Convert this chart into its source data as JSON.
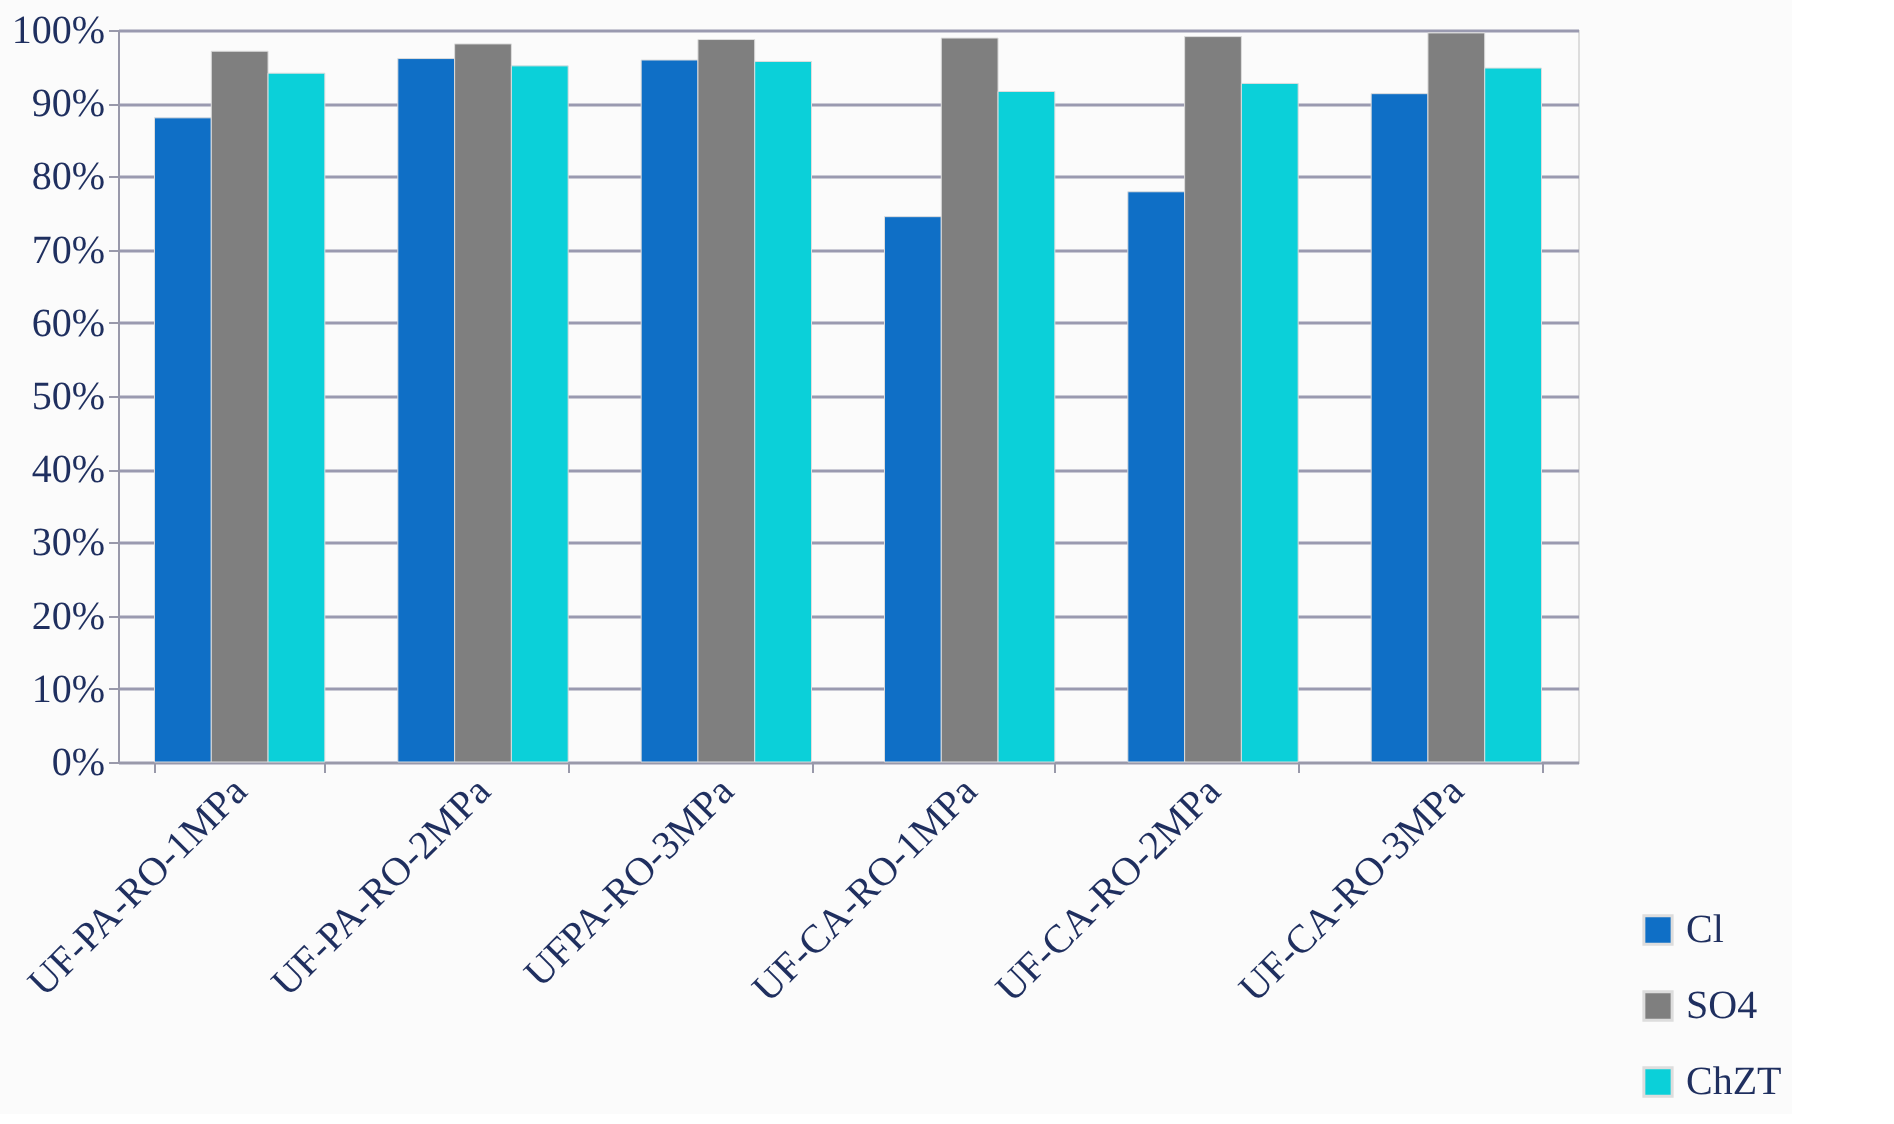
{
  "chart_data": {
    "type": "bar",
    "categories": [
      "UF-PA-RO-1MPa",
      "UF-PA-RO-2MPa",
      "UFPA-RO-3MPa",
      "UF-CA-RO-1MPa",
      "UF-CA-RO-2MPa",
      "UF-CA-RO-3MPa"
    ],
    "series": [
      {
        "name": "Cl",
        "color": "#0f6fc6",
        "values": [
          88.0,
          96.1,
          95.9,
          74.5,
          77.9,
          91.3
        ]
      },
      {
        "name": "SO4",
        "color": "#7f7f7f",
        "values": [
          97.1,
          98.1,
          98.7,
          98.9,
          99.1,
          99.6
        ]
      },
      {
        "name": "ChZT",
        "color": "#0bd0d9",
        "values": [
          94.1,
          95.1,
          95.7,
          91.6,
          92.7,
          94.8
        ]
      }
    ],
    "ylim": [
      0,
      100
    ],
    "yticks": [
      {
        "value": 0,
        "label": "0%"
      },
      {
        "value": 10,
        "label": "10%"
      },
      {
        "value": 20,
        "label": "20%"
      },
      {
        "value": 30,
        "label": "30%"
      },
      {
        "value": 40,
        "label": "40%"
      },
      {
        "value": 50,
        "label": "50%"
      },
      {
        "value": 60,
        "label": "60%"
      },
      {
        "value": 70,
        "label": "70%"
      },
      {
        "value": 80,
        "label": "80%"
      },
      {
        "value": 90,
        "label": "90%"
      },
      {
        "value": 100,
        "label": "100%"
      }
    ],
    "grid": "y",
    "legend": "bottom right"
  }
}
